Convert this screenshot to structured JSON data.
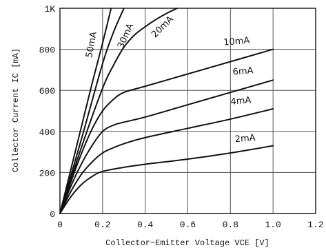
{
  "chart_data": {
    "type": "line",
    "title": "",
    "xlabel": "Collector−Emitter Voltage VCE [V]",
    "ylabel": "Collector Current IC [mA]",
    "xlim": [
      0,
      1.2
    ],
    "ylim": [
      0,
      1000
    ],
    "x_ticks": [
      0,
      0.2,
      0.4,
      0.6,
      0.8,
      1.0,
      1.2
    ],
    "x_tick_labels": [
      "0",
      "0.2",
      "0.4",
      "0.6",
      "0.8",
      "1.0",
      "1.2"
    ],
    "y_ticks": [
      0,
      200,
      400,
      600,
      800,
      1000
    ],
    "y_tick_labels": [
      "0",
      "200",
      "400",
      "600",
      "800",
      "1K"
    ],
    "grid": true,
    "series": [
      {
        "name": "2mA",
        "x": [
          0,
          0.05,
          0.1,
          0.15,
          0.2,
          0.3,
          0.4,
          0.6,
          0.8,
          1.0
        ],
        "y": [
          0,
          80,
          140,
          180,
          205,
          225,
          240,
          265,
          295,
          330
        ]
      },
      {
        "name": "4mA",
        "x": [
          0,
          0.05,
          0.1,
          0.15,
          0.2,
          0.25,
          0.3,
          0.4,
          0.6,
          0.8,
          1.0
        ],
        "y": [
          0,
          105,
          190,
          250,
          295,
          320,
          340,
          370,
          415,
          460,
          510
        ]
      },
      {
        "name": "6mA",
        "x": [
          0,
          0.05,
          0.1,
          0.15,
          0.2,
          0.25,
          0.3,
          0.4,
          0.6,
          0.8,
          1.0
        ],
        "y": [
          0,
          130,
          240,
          330,
          400,
          430,
          445,
          470,
          530,
          590,
          650
        ]
      },
      {
        "name": "10mA",
        "x": [
          0,
          0.05,
          0.1,
          0.15,
          0.2,
          0.25,
          0.3,
          0.4,
          0.6,
          0.8,
          1.0
        ],
        "y": [
          0,
          150,
          290,
          410,
          500,
          555,
          590,
          620,
          680,
          740,
          800
        ]
      },
      {
        "name": "20mA",
        "x": [
          0,
          0.1,
          0.2,
          0.25,
          0.3,
          0.35,
          0.4,
          0.45,
          0.5,
          0.55
        ],
        "y": [
          0,
          320,
          610,
          720,
          810,
          870,
          910,
          945,
          975,
          1000
        ]
      },
      {
        "name": "30mA",
        "x": [
          0,
          0.1,
          0.2,
          0.25,
          0.3
        ],
        "y": [
          0,
          360,
          730,
          880,
          1000
        ]
      },
      {
        "name": "50mA",
        "x": [
          0,
          0.1,
          0.15,
          0.2,
          0.24
        ],
        "y": [
          0,
          420,
          630,
          830,
          1000
        ]
      }
    ]
  }
}
